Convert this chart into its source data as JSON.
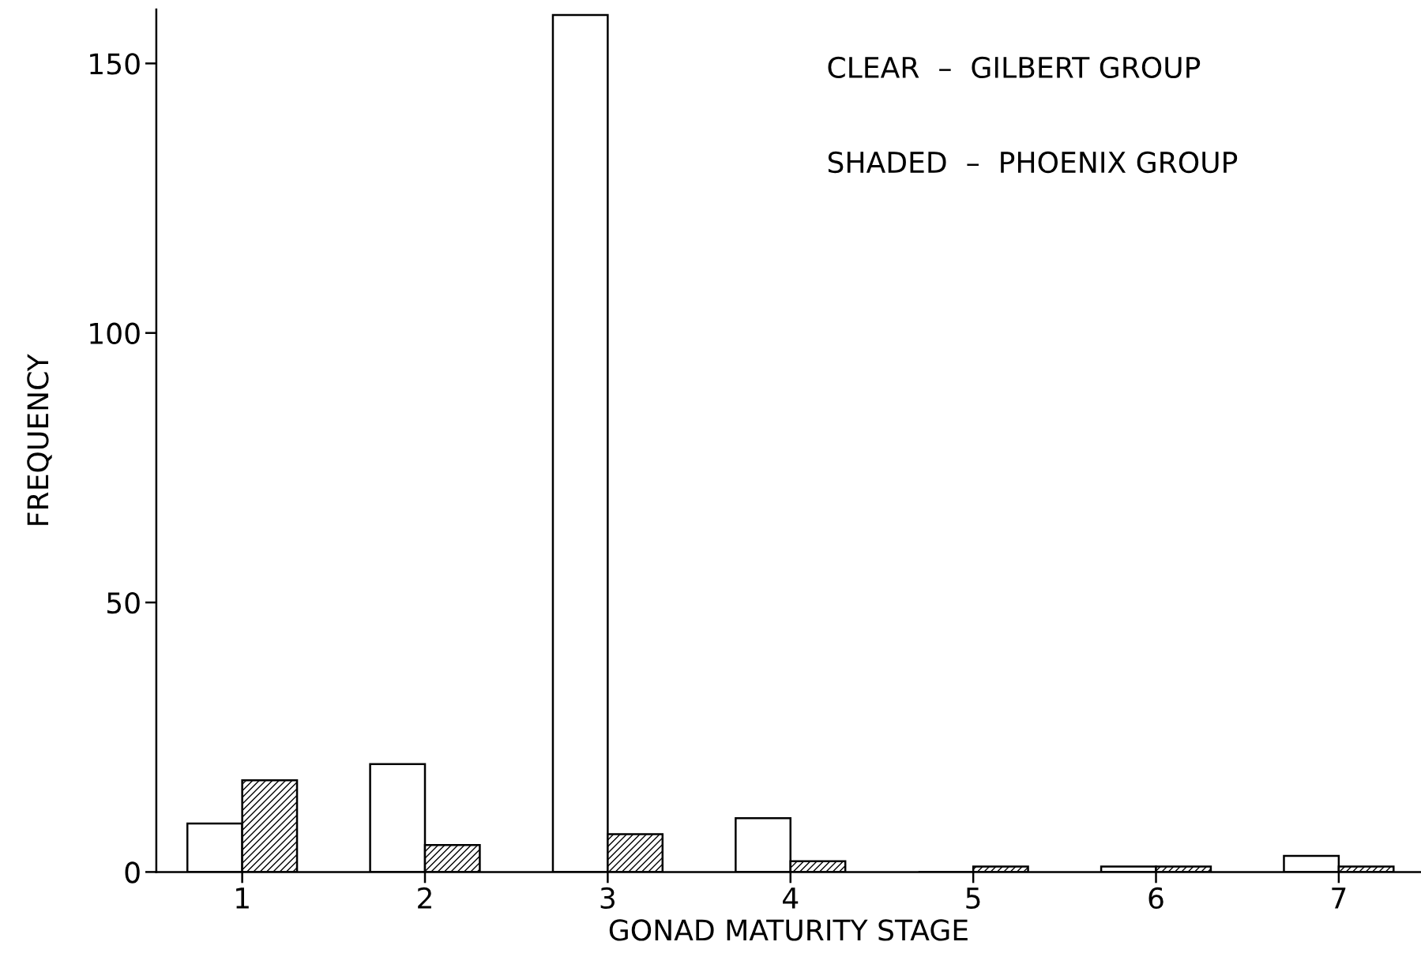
{
  "chart_data": {
    "type": "bar",
    "xlabel": "GONAD MATURITY STAGE",
    "ylabel": "FREQUENCY",
    "categories": [
      "1",
      "2",
      "3",
      "4",
      "5",
      "6",
      "7"
    ],
    "series": [
      {
        "color": "#ffffff",
        "values": [
          9,
          20,
          159,
          10,
          0,
          1,
          3
        ]
      },
      {
        "color": "#000000",
        "values": [
          17,
          5,
          7,
          2,
          1,
          1,
          1
        ]
      }
    ],
    "ylim": [
      0,
      160
    ],
    "yticks": [
      0,
      50,
      100,
      150
    ],
    "grid": false,
    "legend": false,
    "annotations": [
      "CLEAR  –  GILBERT GROUP",
      "SHADED  –  PHOENIX GROUP"
    ]
  }
}
